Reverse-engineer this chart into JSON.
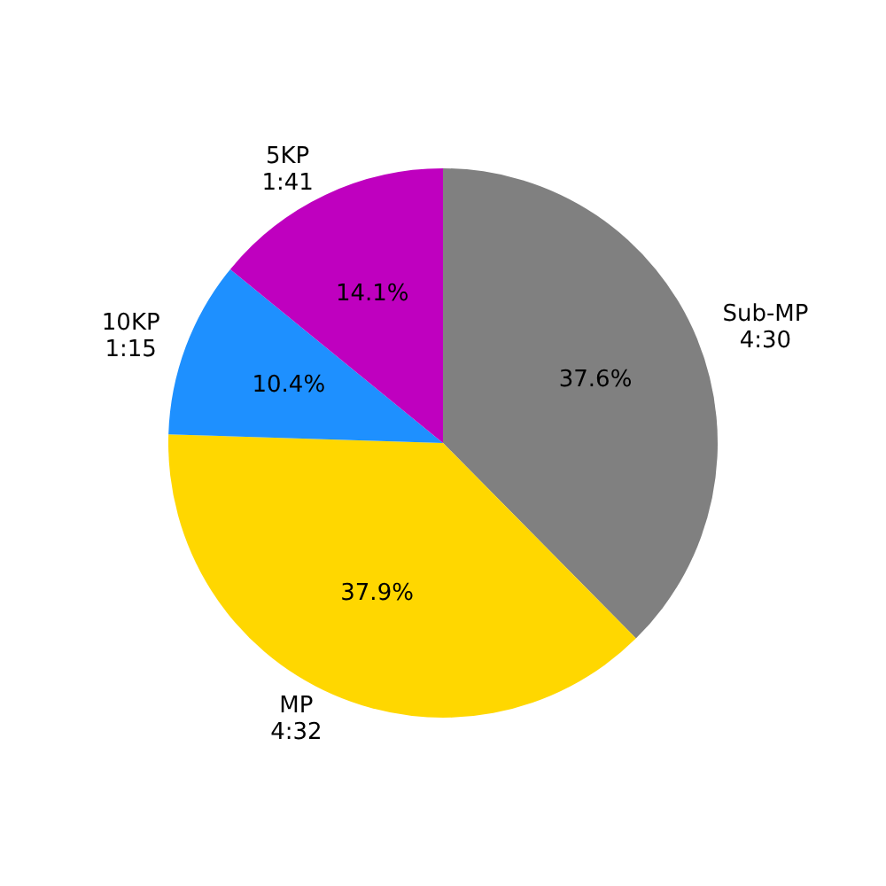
{
  "chart_data": {
    "type": "pie",
    "categories": [
      "Sub-MP\n4:30",
      "MP\n4:32",
      "10KP\n1:15",
      "5KP\n1:41"
    ],
    "values": [
      37.6,
      37.9,
      10.4,
      14.1
    ],
    "colors": [
      "#808080",
      "#ffd700",
      "#1e90ff",
      "#bf00bf"
    ],
    "value_labels": [
      "37.6%",
      "37.9%",
      "10.4%",
      "14.1%"
    ],
    "legend": false
  }
}
